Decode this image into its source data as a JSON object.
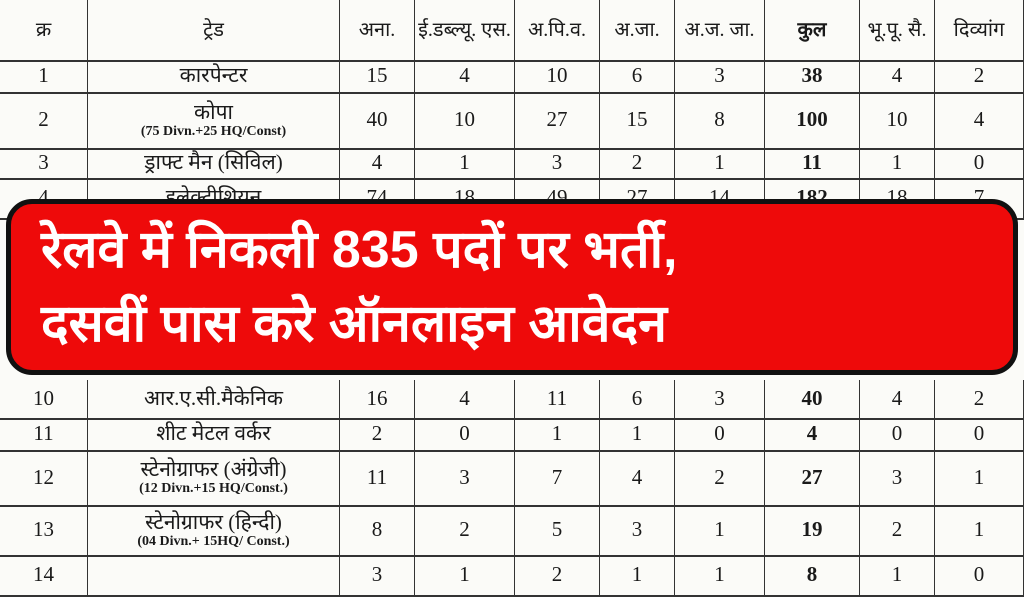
{
  "table": {
    "headers": [
      "क्र",
      "ट्रेड",
      "अना.",
      "ई.डब्ल्यू. एस.",
      "अ.पि.व.",
      "अ.जा.",
      "अ.ज. जा.",
      "कुल",
      "भू.पू. सै.",
      "दिव्यांग"
    ],
    "rows_top": [
      {
        "no": "1",
        "trade": "कारपेन्टर",
        "note": "",
        "vals": [
          "15",
          "4",
          "10",
          "6",
          "3",
          "38",
          "4",
          "2"
        ]
      },
      {
        "no": "2",
        "trade": "कोपा",
        "note": "(75 Divn.+25 HQ/Const)",
        "vals": [
          "40",
          "10",
          "27",
          "15",
          "8",
          "100",
          "10",
          "4"
        ]
      },
      {
        "no": "3",
        "trade": "ड्राफ्ट मैन (सिविल)",
        "note": "",
        "vals": [
          "4",
          "1",
          "3",
          "2",
          "1",
          "11",
          "1",
          "0"
        ]
      },
      {
        "no": "4",
        "trade": "इलेक्ट्रीशियन",
        "note": "",
        "vals": [
          "74",
          "18",
          "49",
          "27",
          "14",
          "182",
          "18",
          "7"
        ]
      }
    ],
    "rows_bottom": [
      {
        "no": "10",
        "trade": "आर.ए.सी.मैकेनिक",
        "note": "",
        "vals": [
          "16",
          "4",
          "11",
          "6",
          "3",
          "40",
          "4",
          "2"
        ]
      },
      {
        "no": "11",
        "trade": "शीट मेटल वर्कर",
        "note": "",
        "vals": [
          "2",
          "0",
          "1",
          "1",
          "0",
          "4",
          "0",
          "0"
        ]
      },
      {
        "no": "12",
        "trade": "स्टेनोग्राफर (अंग्रेजी)",
        "note": "(12 Divn.+15 HQ/Const.)",
        "vals": [
          "11",
          "3",
          "7",
          "4",
          "2",
          "27",
          "3",
          "1"
        ]
      },
      {
        "no": "13",
        "trade": "स्टेनोग्राफर (हिन्दी)",
        "note": "(04 Divn.+ 15HQ/ Const.)",
        "vals": [
          "8",
          "2",
          "5",
          "3",
          "1",
          "19",
          "2",
          "1"
        ]
      },
      {
        "no": "14",
        "trade": "",
        "note": "",
        "vals": [
          "3",
          "1",
          "2",
          "1",
          "1",
          "8",
          "1",
          "0"
        ]
      }
    ]
  },
  "banner": {
    "line1": "रेलवे में निकली 835 पदों पर भर्ती,",
    "line2": "दसवीं पास करे ऑनलाइन आवेदन",
    "bg_color": "#ee0a0a"
  }
}
